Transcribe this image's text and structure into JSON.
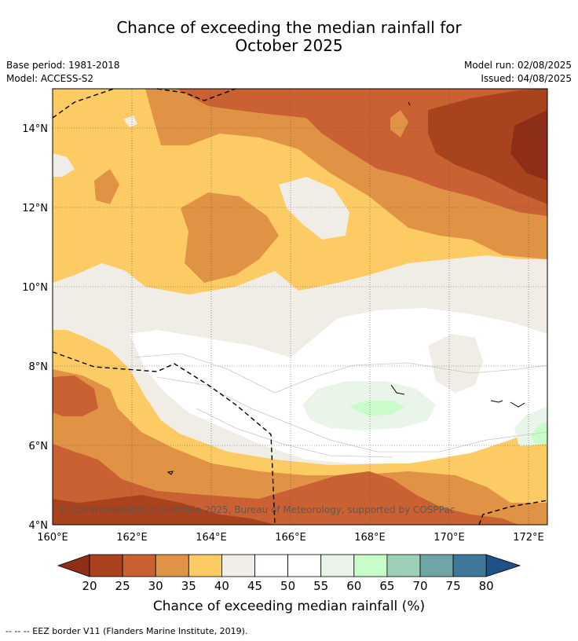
{
  "title": {
    "line1": "Chance of exceeding the median rainfall for",
    "line2": "October 2025"
  },
  "meta": {
    "base_period": "Base period: 1981-2018",
    "model": "Model: ACCESS-S2",
    "model_run": "Model run: 02/08/2025",
    "issued": "Issued: 04/08/2025"
  },
  "map": {
    "lon_range": [
      160,
      172.5
    ],
    "lat_range": [
      4,
      15
    ],
    "x_ticks": [
      "160°E",
      "162°E",
      "164°E",
      "166°E",
      "168°E",
      "170°E",
      "172°E"
    ],
    "y_ticks": [
      "4°N",
      "6°N",
      "8°N",
      "10°N",
      "12°N",
      "14°N"
    ],
    "copyright": "© Commonwealth of Australia 2025, Bureau of Meteorology, supported by COSPPac"
  },
  "colorbar": {
    "title": "Chance of exceeding median rainfall (%)",
    "labels": [
      "20",
      "25",
      "30",
      "35",
      "40",
      "45",
      "50",
      "55",
      "60",
      "65",
      "70",
      "75",
      "80"
    ],
    "colors": [
      "#a8431e",
      "#c96132",
      "#e09245",
      "#fccb64",
      "#f0ece6",
      "#ffffff",
      "#ffffff",
      "#e8f5e8",
      "#c8fcc8",
      "#9ccfb6",
      "#6fa5a5",
      "#3f7899"
    ],
    "low_color": "#8f2e18",
    "high_color": "#1f5187"
  },
  "footer": {
    "text": "--  --  -- EEZ border V11 (Flanders Marine Institute, 2019)."
  }
}
